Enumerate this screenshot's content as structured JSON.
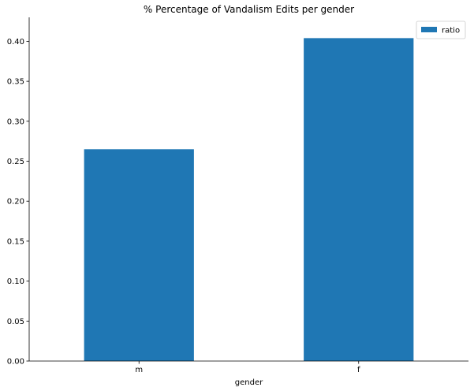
{
  "chart_data": {
    "type": "bar",
    "title": "% Percentage of Vandalism Edits per gender",
    "xlabel": "gender",
    "ylabel": "",
    "categories": [
      "m",
      "f"
    ],
    "series": [
      {
        "name": "ratio",
        "values": [
          0.265,
          0.404
        ],
        "color": "#1f77b4"
      }
    ],
    "ylim": [
      0,
      0.43
    ],
    "yticks": [
      0.0,
      0.05,
      0.1,
      0.15,
      0.2,
      0.25,
      0.3,
      0.35,
      0.4
    ],
    "ytick_labels": [
      "0.00",
      "0.05",
      "0.10",
      "0.15",
      "0.20",
      "0.25",
      "0.30",
      "0.35",
      "0.40"
    ],
    "grid": false,
    "legend_position": "top-right"
  }
}
